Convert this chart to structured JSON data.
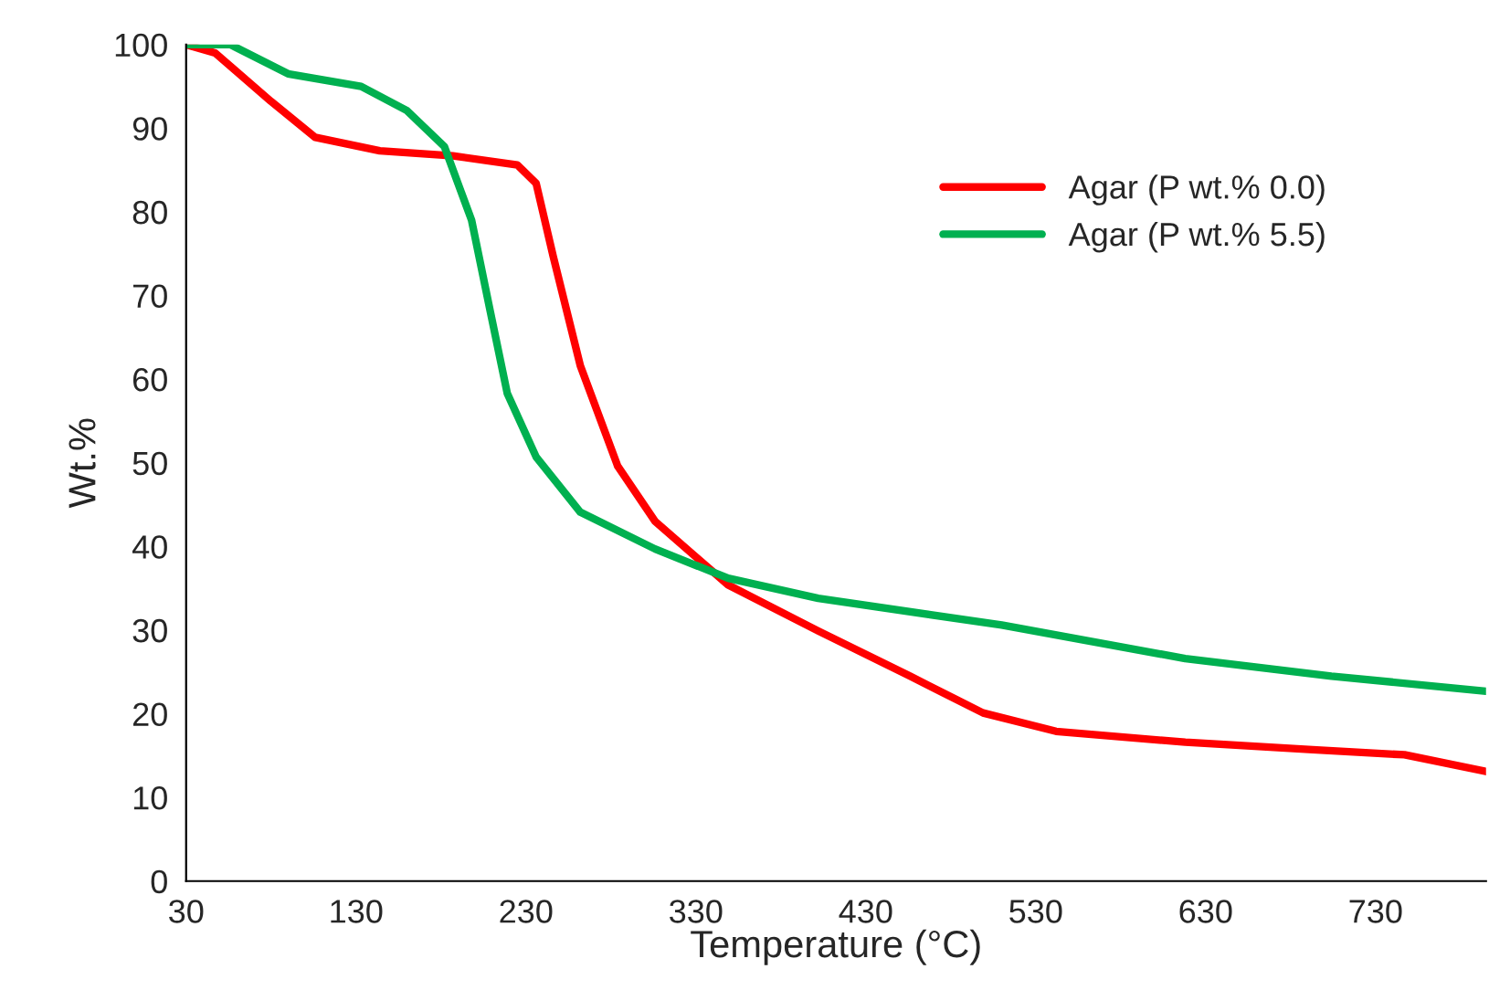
{
  "chart_data": {
    "type": "line",
    "xlabel": "Temperature (°C)",
    "ylabel": "Wt.%",
    "series": [
      {
        "name": "Agar (P wt.% 0.0)",
        "color": "#ff0000",
        "x": [
          30,
          47,
          80,
          106,
          144,
          187,
          225,
          236,
          246,
          262,
          284,
          306,
          349,
          402,
          456,
          499,
          542,
          618,
          693,
          747,
          795
        ],
        "values": [
          100,
          99,
          93.2,
          88.9,
          87.3,
          86.7,
          85.6,
          83.4,
          74.7,
          61.6,
          49.6,
          43,
          35.4,
          29.9,
          24.5,
          20.1,
          17.9,
          16.6,
          15.7,
          15.1,
          13.1
        ]
      },
      {
        "name": "Agar (P wt.% 5.5)",
        "color": "#00b050",
        "x": [
          30,
          56,
          90,
          133,
          160,
          182,
          198,
          209,
          219,
          236,
          262,
          306,
          349,
          402,
          510,
          618,
          704,
          795
        ],
        "values": [
          100,
          100,
          96.5,
          95,
          92.1,
          87.8,
          79,
          68.1,
          58.3,
          50.7,
          44.1,
          39.7,
          36.2,
          33.8,
          30.6,
          26.6,
          24.5,
          22.7
        ]
      }
    ],
    "xlim": [
      30,
      795
    ],
    "xticks": [
      30,
      130,
      230,
      330,
      430,
      530,
      630,
      730
    ],
    "ylim": [
      0,
      100
    ],
    "yticks": [
      0,
      10,
      20,
      30,
      40,
      50,
      60,
      70,
      80,
      90,
      100
    ],
    "grid": false,
    "legend": "top right",
    "marker": "none",
    "line_style": "solid"
  }
}
